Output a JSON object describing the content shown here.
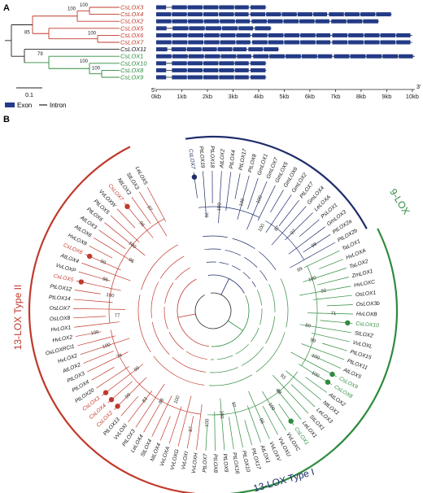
{
  "panel_a": {
    "letter": "A",
    "genes": [
      {
        "name": "CsLOX3",
        "color": "#c0392b",
        "len": 4.3
      },
      {
        "name": "CsLOX4",
        "color": "#c0392b",
        "len": 9.2
      },
      {
        "name": "CsLOX2",
        "color": "#c0392b",
        "len": 8.7
      },
      {
        "name": "CsLOX5",
        "color": "#c0392b",
        "len": 4.5
      },
      {
        "name": "CsLOX6",
        "color": "#c0392b",
        "len": 10.0
      },
      {
        "name": "CsLOX7",
        "color": "#c0392b",
        "len": 10.0
      },
      {
        "name": "CsLOX11",
        "color": "#222222",
        "len": 4.8
      },
      {
        "name": "CsLOX1",
        "color": "#2e8b3d",
        "len": 10.1
      },
      {
        "name": "CsLOX10",
        "color": "#2e8b3d",
        "len": 4.3
      },
      {
        "name": "CsLOX8",
        "color": "#2e8b3d",
        "len": 4.3
      },
      {
        "name": "CsLOX9",
        "color": "#2e8b3d",
        "len": 4.3
      }
    ],
    "bootstraps": [
      "100",
      "100",
      "85",
      "100",
      "79",
      "100",
      "100"
    ],
    "scale": "0.1",
    "axis_ticks": [
      "0kb",
      "1kb",
      "2kb",
      "3kb",
      "4kb",
      "5kb",
      "6kb",
      "7kb",
      "8kb",
      "9kb",
      "10kb"
    ],
    "five_prime": "5'",
    "three_prime": "3'",
    "legend": {
      "exon": "Exon",
      "intron": "Intron"
    }
  },
  "panel_b": {
    "letter": "B",
    "groups": {
      "type2": {
        "label": "13-LOX Type II",
        "color": "#c0392b"
      },
      "nine": {
        "label": "9-LOX",
        "color": "#2e8b3d"
      },
      "type1": {
        "label": "13-LOX Type I",
        "color": "#1f2d6b"
      }
    },
    "leaves": [
      {
        "name": "CsLOX7",
        "group": "type1",
        "dot": "#1f2d6b"
      },
      {
        "name": "PtLOX19",
        "group": "type1"
      },
      {
        "name": "PtLOX18",
        "group": "type1"
      },
      {
        "name": "AtLOX2",
        "group": "type1"
      },
      {
        "name": "PtLOX4",
        "group": "type1"
      },
      {
        "name": "PtLOX17",
        "group": "type1"
      },
      {
        "name": "PtLOX8",
        "group": "type1"
      },
      {
        "name": "GmLOX1",
        "group": "type1"
      },
      {
        "name": "GmLOX7",
        "group": "type1"
      },
      {
        "name": "GmLOX5",
        "group": "type1"
      },
      {
        "name": "GmLOX6",
        "group": "type1"
      },
      {
        "name": "GmLOX2",
        "group": "type1"
      },
      {
        "name": "PtLOX7",
        "group": "type1"
      },
      {
        "name": "GmLOX4",
        "group": "type1"
      },
      {
        "name": "LeLOXA",
        "group": "type1"
      },
      {
        "name": "PsLOX1",
        "group": "type1"
      },
      {
        "name": "GmLOX3",
        "group": "type1"
      },
      {
        "name": "PtLOX2a",
        "group": "type1"
      },
      {
        "name": "PtLOX2b",
        "group": "type1"
      },
      {
        "name": "TaLOX1",
        "group": "nine"
      },
      {
        "name": "HvLOXA",
        "group": "nine"
      },
      {
        "name": "TaLOX2",
        "group": "nine"
      },
      {
        "name": "ZmLOX1",
        "group": "nine"
      },
      {
        "name": "HvLOXC",
        "group": "nine"
      },
      {
        "name": "OsLOX1",
        "group": "nine"
      },
      {
        "name": "OsLOX3b",
        "group": "nine"
      },
      {
        "name": "HvLOXB",
        "group": "nine"
      },
      {
        "name": "CsLOX10",
        "group": "nine",
        "dot": "#2e8b3d"
      },
      {
        "name": "StLOX2",
        "group": "nine"
      },
      {
        "name": "VvLOXL",
        "group": "nine"
      },
      {
        "name": "PtLOX15",
        "group": "nine"
      },
      {
        "name": "PtLOX11",
        "group": "nine"
      },
      {
        "name": "AtLOX5",
        "group": "nine"
      },
      {
        "name": "CsLOX9",
        "group": "nine",
        "dot": "#2e8b3d"
      },
      {
        "name": "CsLOX8",
        "group": "nine",
        "dot": "#2e8b3d"
      },
      {
        "name": "AtLOX2",
        "group": "nine"
      },
      {
        "name": "NtLOX1",
        "group": "nine"
      },
      {
        "name": "LeLOX3",
        "group": "nine"
      },
      {
        "name": "StLOX1",
        "group": "nine"
      },
      {
        "name": "LeLOX1",
        "group": "nine"
      },
      {
        "name": "CsLOX1",
        "group": "nine",
        "dot": "#2e8b3d"
      },
      {
        "name": "VvLOXC",
        "group": "nine"
      },
      {
        "name": "VvLOXU",
        "group": "nine"
      },
      {
        "name": "VvLOXV",
        "group": "nine"
      },
      {
        "name": "AtLOX1",
        "group": "nine"
      },
      {
        "name": "PtLOX17",
        "group": "nine"
      },
      {
        "name": "PtLOX10",
        "group": "nine"
      },
      {
        "name": "PtLOX16",
        "group": "nine"
      },
      {
        "name": "PtLOX9",
        "group": "nine"
      },
      {
        "name": "PtLOX8",
        "group": "nine"
      },
      {
        "name": "PtLOX7",
        "group": "nine"
      },
      {
        "name": "VvLOXH",
        "group": "type2"
      },
      {
        "name": "VvLOXI",
        "group": "type2"
      },
      {
        "name": "VvLOXG",
        "group": "type2"
      },
      {
        "name": "VvLOXA",
        "group": "type2"
      },
      {
        "name": "NtLOX4",
        "group": "type2"
      },
      {
        "name": "StLOX4",
        "group": "type2"
      },
      {
        "name": "LeLOX4",
        "group": "type2"
      },
      {
        "name": "PtLOX3",
        "group": "type2"
      },
      {
        "name": "VvLOXI",
        "group": "type2"
      },
      {
        "name": "PtLOX13",
        "group": "type2"
      },
      {
        "name": "CsLOX2",
        "group": "type2",
        "dot": "#c0392b"
      },
      {
        "name": "CsLOX4",
        "group": "type2",
        "dot": "#c0392b"
      },
      {
        "name": "CsLOX3",
        "group": "type2",
        "dot": "#c0392b"
      },
      {
        "name": "PtLOX20",
        "group": "type2"
      },
      {
        "name": "PtLOX4",
        "group": "type2"
      },
      {
        "name": "PtLOX3",
        "group": "type2"
      },
      {
        "name": "AtLOX2",
        "group": "type2"
      },
      {
        "name": "HvLOX2",
        "group": "type2"
      },
      {
        "name": "OsLOXRCI1",
        "group": "type2"
      },
      {
        "name": "HvLOX2",
        "group": "type2"
      },
      {
        "name": "HvLOX1",
        "group": "type2"
      },
      {
        "name": "OsLOX8",
        "group": "type2"
      },
      {
        "name": "OsLOX7",
        "group": "type2"
      },
      {
        "name": "PtLOX14",
        "group": "type2"
      },
      {
        "name": "PtLOX12",
        "group": "type2"
      },
      {
        "name": "CsLOX5",
        "group": "type2",
        "dot": "#c0392b"
      },
      {
        "name": "VvLOXP",
        "group": "type2"
      },
      {
        "name": "AtLOX4",
        "group": "type2"
      },
      {
        "name": "CsLOX6",
        "group": "type2",
        "dot": "#c0392b"
      },
      {
        "name": "HvLOX8",
        "group": "type2"
      },
      {
        "name": "AtLOX6",
        "group": "type2"
      },
      {
        "name": "AtLOX3",
        "group": "type2"
      },
      {
        "name": "PtLOX6",
        "group": "type2"
      },
      {
        "name": "PtLOX5",
        "group": "type2"
      },
      {
        "name": "VvLOXW",
        "group": "type2"
      },
      {
        "name": "CsLOX7",
        "group": "type2",
        "dot": "#c0392b"
      },
      {
        "name": "NtLOX3",
        "group": "type2"
      },
      {
        "name": "StLOX3",
        "group": "type2"
      },
      {
        "name": "LeLOX5",
        "group": "type2"
      }
    ],
    "bootstrap_labels": [
      "79",
      "100",
      "100",
      "100",
      "100",
      "87",
      "97",
      "98",
      "99",
      "100",
      "92",
      "71",
      "80",
      "99",
      "100",
      "100",
      "93",
      "88",
      "100",
      "98",
      "97",
      "100",
      "100",
      "87",
      "100",
      "88",
      "83",
      "99",
      "99",
      "74",
      "100",
      "100",
      "77",
      "100",
      "86",
      "99",
      "95",
      "100",
      "96",
      "97"
    ]
  }
}
